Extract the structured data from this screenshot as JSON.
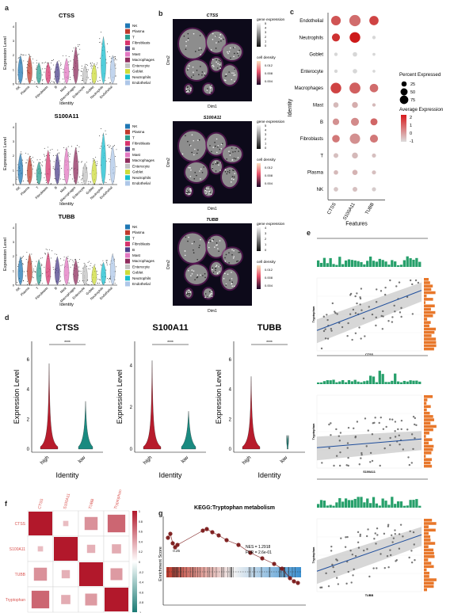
{
  "panel_labels": {
    "a": "a",
    "b": "b",
    "c": "c",
    "d": "d",
    "e": "e",
    "f": "f",
    "g": "g"
  },
  "identities": [
    "NK",
    "Plasma",
    "T",
    "Fibroblasts",
    "B",
    "Mast",
    "Macrophages",
    "Enterocyte",
    "Goblet",
    "Neutrophils",
    "Endothelial"
  ],
  "identity_colors": [
    "#1f77b4",
    "#c0392b",
    "#2a9d8f",
    "#d6336c",
    "#4b3f8a",
    "#e377c2",
    "#8e2c5c",
    "#c2c2c2",
    "#cddc39",
    "#17becf",
    "#aec7e8"
  ],
  "panel_a": {
    "ylabel": "Expression Level",
    "xlabel": "Identity",
    "genes": [
      "CTSS",
      "S100A11",
      "TUBB"
    ]
  },
  "panel_b": {
    "titles": [
      "CTSS",
      "S100A11",
      "TUBB"
    ],
    "xlabel": "Dim1",
    "ylabel": "Dim2",
    "legend_expr_title": "gene expression",
    "legend_density_title": "cell density",
    "expr_ticks": [
      [
        "5",
        "4",
        "3",
        "2",
        "1",
        "0"
      ],
      [
        "5",
        "4",
        "3",
        "2",
        "1",
        "0"
      ],
      [
        "4",
        "3",
        "2",
        "1",
        "0"
      ]
    ],
    "density_ticks": [
      [
        "0.012",
        "0.008",
        "0.004"
      ],
      [
        "0.012",
        "0.008",
        "0.004"
      ],
      [
        "0.012",
        "0.008",
        "0.004"
      ]
    ]
  },
  "chart_data": [
    {
      "type": "scatter",
      "panel": "c",
      "subtype": "dot plot",
      "features": [
        "CTSS",
        "S100A11",
        "TUBB"
      ],
      "identities": [
        "Endothelial",
        "Neutrophils",
        "Goblet",
        "Enterocyte",
        "Macrophages",
        "Mast",
        "B",
        "Fibroblasts",
        "T",
        "Plasma",
        "NK"
      ],
      "xlabel": "Features",
      "ylabel": "Identity",
      "percent_expressed": [
        [
          60,
          85,
          55
        ],
        [
          40,
          75,
          5
        ],
        [
          5,
          10,
          3
        ],
        [
          5,
          10,
          3
        ],
        [
          75,
          80,
          45
        ],
        [
          15,
          20,
          5
        ],
        [
          25,
          40,
          30
        ],
        [
          35,
          70,
          40
        ],
        [
          12,
          20,
          8
        ],
        [
          10,
          15,
          8
        ],
        [
          10,
          12,
          8
        ]
      ],
      "average_expression": [
        [
          1.2,
          0.8,
          1.5
        ],
        [
          1.8,
          2.2,
          -1
        ],
        [
          -1,
          -1,
          -1
        ],
        [
          -1,
          -1,
          -1
        ],
        [
          1.5,
          1.0,
          0.8
        ],
        [
          -0.5,
          -0.3,
          -0.5
        ],
        [
          0.2,
          0.3,
          0.9
        ],
        [
          0.6,
          0.2,
          0.6
        ],
        [
          -0.6,
          -0.5,
          -0.6
        ],
        [
          -0.5,
          -0.4,
          -0.6
        ],
        [
          -0.7,
          -0.6,
          -0.8
        ]
      ],
      "size_legend_title": "Percent Expressed",
      "size_legend": [
        "25",
        "50",
        "75"
      ],
      "color_legend_title": "Average Expression",
      "color_legend": [
        "2",
        "1",
        "0",
        "-1"
      ]
    },
    {
      "type": "violin",
      "panel": "d",
      "genes": [
        "CTSS",
        "S100A11",
        "TUBB"
      ],
      "categories": [
        "high",
        "low"
      ],
      "xlabel": "Identity",
      "ylabel": "Expression Level",
      "significance": "****",
      "y_ticks": [
        [
          "0",
          "2",
          "4",
          "6"
        ],
        [
          "0",
          "2",
          "4"
        ],
        [
          "0",
          "2",
          "4",
          "6"
        ]
      ],
      "ylim": [
        [
          0,
          7
        ],
        [
          0,
          5
        ],
        [
          0,
          7
        ]
      ],
      "colors": [
        "#b71c2c",
        "#1a8a80"
      ]
    },
    {
      "type": "heatmap",
      "panel": "f",
      "variables": [
        "CTSS",
        "S100A11",
        "TUBB",
        "Tryptophan"
      ],
      "values": [
        [
          1,
          0.05,
          0.3,
          0.55
        ],
        [
          0.05,
          1,
          0.12,
          0.15
        ],
        [
          0.3,
          0.12,
          1,
          0.25
        ],
        [
          0.55,
          0.15,
          0.25,
          1
        ]
      ],
      "colorbar_ticks": [
        "1",
        "0.8",
        "0.6",
        "0.4",
        "0.2",
        "0",
        "-0.2",
        "-0.4",
        "-0.6",
        "-0.8",
        "-1"
      ]
    },
    {
      "type": "line",
      "panel": "g",
      "title": "KEGG:Tryptophan metabolism",
      "ylabel": "Enrichment Score",
      "y_ticks": [
        "0.25",
        "0.00"
      ],
      "annotation_nes": "NES = 1.2918",
      "annotation_fdr": "FDR = 2.6e-01"
    },
    {
      "type": "scatter",
      "panel": "e",
      "genes": [
        "CTSS",
        "S100A11",
        "TUBB"
      ],
      "ylabel": "Tryptophan"
    }
  ]
}
